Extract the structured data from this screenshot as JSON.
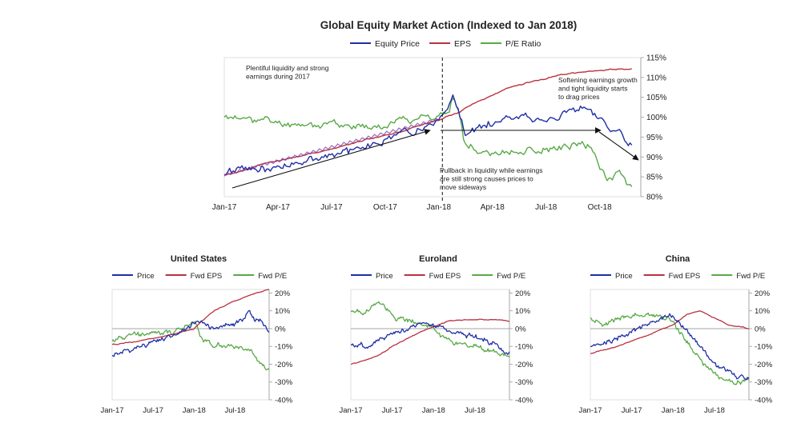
{
  "colors": {
    "price": "#1f2fa6",
    "eps": "#b83240",
    "pe": "#59a948",
    "overlap": "#7a3aa0",
    "axis": "#999999",
    "text": "#222222",
    "arrow": "#111111"
  },
  "chart_data": [
    {
      "type": "line",
      "title": "Global Equity Market Action (Indexed to Jan 2018)",
      "x_ticks": [
        "Jan-17",
        "Apr-17",
        "Jul-17",
        "Oct-17",
        "Jan-18",
        "Apr-18",
        "Jul-18",
        "Oct-18"
      ],
      "x_domain": [
        0,
        23.3
      ],
      "y_ticks": [
        "80%",
        "85%",
        "90%",
        "95%",
        "100%",
        "105%",
        "110%",
        "115%"
      ],
      "ylim": [
        80,
        115
      ],
      "y_axis_side": "right",
      "legend_position": "top-center",
      "series": [
        {
          "name": "Equity Price",
          "key": "price",
          "x": [
            0,
            1,
            2,
            3,
            4,
            5,
            6,
            7,
            8,
            9,
            10,
            11,
            12,
            12.4,
            12.8,
            13,
            13.5,
            14,
            15,
            16,
            17,
            18,
            19,
            20,
            20.5,
            21,
            21.5,
            22,
            22.5,
            22.8
          ],
          "y": [
            85.5,
            86.5,
            87.5,
            88,
            88.5,
            89.5,
            90.5,
            91,
            92.5,
            94.5,
            96.5,
            97.5,
            99.5,
            101,
            104.5,
            102,
            95.5,
            97,
            98.5,
            99.5,
            100,
            100,
            101,
            102.5,
            103,
            100,
            96,
            97.5,
            94,
            93
          ]
        },
        {
          "name": "EPS",
          "key": "eps",
          "x": [
            0,
            1,
            2,
            3,
            4,
            5,
            6,
            7,
            8,
            9,
            10,
            11,
            12,
            13,
            14,
            15,
            16,
            17,
            18,
            19,
            20,
            21,
            22,
            22.8
          ],
          "y": [
            85.5,
            86.5,
            88,
            89,
            90,
            91,
            92,
            93.2,
            94.5,
            95.5,
            96.5,
            98,
            99.3,
            101,
            103.5,
            105.5,
            107.5,
            108.8,
            109.8,
            110.8,
            111.4,
            111.8,
            112.1,
            112.2
          ]
        },
        {
          "name": "P/E Ratio",
          "key": "pe",
          "x": [
            0,
            1,
            2,
            3,
            4,
            5,
            6,
            7,
            8,
            9,
            10,
            11,
            12,
            12.5,
            12.8,
            13.2,
            13.5,
            14,
            15,
            16,
            17,
            18,
            19,
            20,
            20.5,
            21,
            21.5,
            22,
            22.5,
            22.8
          ],
          "y": [
            100,
            99.5,
            99.5,
            98.5,
            98.5,
            98,
            98.5,
            97.5,
            97.5,
            98.5,
            99.5,
            100,
            100.5,
            101,
            104.5,
            100,
            93,
            92.5,
            90.5,
            91.5,
            91.5,
            92,
            92,
            92.5,
            93,
            87.5,
            84.5,
            86.5,
            83.5,
            82.5
          ]
        }
      ],
      "annotations": [
        {
          "lines": [
            "Plentiful liquidity and strong",
            "earnings during 2017"
          ]
        },
        {
          "lines": [
            "Softening earnings growth",
            "and tight liquidity starts",
            "to drag prices"
          ]
        },
        {
          "lines": [
            "Pullback in liquidity while earnings",
            "are still strong causes prices to",
            "move sideways"
          ]
        }
      ]
    },
    {
      "type": "line",
      "title": "United States",
      "x_ticks": [
        "Jan-17",
        "Jul-17",
        "Jan-18",
        "Jul-18"
      ],
      "x_domain": [
        0,
        23
      ],
      "y_ticks": [
        "20%",
        "10%",
        "0%",
        "-10%",
        "-20%",
        "-30%",
        "-40%"
      ],
      "ylim": [
        -40,
        22
      ],
      "y_axis_side": "right",
      "legend_position": "top",
      "series": [
        {
          "name": "Price",
          "key": "price",
          "x": [
            0,
            3,
            6,
            9,
            11,
            12,
            13,
            15,
            17,
            19,
            20,
            21,
            22,
            23
          ],
          "y": [
            -15,
            -12,
            -8,
            -4,
            0,
            3,
            4,
            0,
            2,
            5,
            10,
            5,
            4,
            -2
          ]
        },
        {
          "name": "Fwd EPS",
          "key": "eps",
          "x": [
            0,
            3,
            6,
            9,
            11,
            12,
            13,
            15,
            17,
            19,
            21,
            23
          ],
          "y": [
            -9,
            -7.5,
            -5.5,
            -3,
            -1,
            0,
            4,
            10,
            14,
            17,
            20,
            22
          ]
        },
        {
          "name": "Fwd P/E",
          "key": "pe",
          "x": [
            0,
            3,
            6,
            9,
            11,
            12,
            13,
            15,
            17,
            19,
            20,
            21,
            22,
            23
          ],
          "y": [
            -7,
            -4,
            -3,
            -2,
            2,
            5,
            -4,
            -10,
            -10,
            -11,
            -12,
            -16,
            -20,
            -23
          ]
        }
      ]
    },
    {
      "type": "line",
      "title": "Euroland",
      "x_ticks": [
        "Jan-17",
        "Jul-17",
        "Jan-18",
        "Jul-18"
      ],
      "x_domain": [
        0,
        23
      ],
      "y_ticks": [
        "20%",
        "10%",
        "0%",
        "-10%",
        "-20%",
        "-30%",
        "-40%"
      ],
      "ylim": [
        -40,
        22
      ],
      "y_axis_side": "right",
      "legend_position": "top",
      "series": [
        {
          "name": "Price",
          "key": "price",
          "x": [
            0,
            2,
            4,
            6,
            8,
            10,
            12,
            13,
            15,
            17,
            19,
            20,
            21,
            22,
            23
          ],
          "y": [
            -9,
            -10,
            -6,
            -3,
            0,
            2,
            2,
            0,
            -2,
            -3,
            -5,
            -7,
            -9,
            -12,
            -13
          ]
        },
        {
          "name": "Fwd EPS",
          "key": "eps",
          "x": [
            0,
            2,
            4,
            6,
            8,
            10,
            12,
            14,
            16,
            18,
            20,
            22,
            23
          ],
          "y": [
            -20,
            -18,
            -15,
            -10,
            -6,
            -2,
            1,
            4,
            5,
            5,
            5,
            5,
            4
          ]
        },
        {
          "name": "Fwd P/E",
          "key": "pe",
          "x": [
            0,
            2,
            4,
            5,
            6,
            8,
            10,
            12,
            13,
            15,
            17,
            19,
            21,
            22,
            23
          ],
          "y": [
            10,
            9,
            16,
            12,
            7,
            4,
            2,
            0,
            -4,
            -8,
            -9,
            -11,
            -13,
            -15,
            -16
          ]
        }
      ]
    },
    {
      "type": "line",
      "title": "China",
      "x_ticks": [
        "Jan-17",
        "Jul-17",
        "Jan-18",
        "Jul-18"
      ],
      "x_domain": [
        0,
        23
      ],
      "y_ticks": [
        "20%",
        "10%",
        "0%",
        "-10%",
        "-20%",
        "-30%",
        "-40%"
      ],
      "ylim": [
        -40,
        22
      ],
      "y_axis_side": "right",
      "legend_position": "top",
      "series": [
        {
          "name": "Price",
          "key": "price",
          "x": [
            0,
            2,
            4,
            6,
            8,
            10,
            12,
            13,
            15,
            16,
            17,
            18,
            19,
            20,
            21,
            22,
            23
          ],
          "y": [
            -10,
            -8,
            -5,
            -2,
            2,
            5,
            7,
            2,
            -5,
            -10,
            -15,
            -20,
            -22,
            -25,
            -27,
            -27,
            -28
          ]
        },
        {
          "name": "Fwd EPS",
          "key": "eps",
          "x": [
            0,
            2,
            4,
            6,
            8,
            10,
            12,
            13,
            14,
            16,
            18,
            20,
            22,
            23
          ],
          "y": [
            -14,
            -12,
            -10,
            -7,
            -4,
            -1,
            2,
            5,
            8,
            10,
            6,
            2,
            1,
            0
          ]
        },
        {
          "name": "Fwd P/E",
          "key": "pe",
          "x": [
            0,
            2,
            4,
            6,
            8,
            10,
            12,
            13,
            15,
            16,
            17,
            18,
            19,
            20,
            21,
            22,
            23
          ],
          "y": [
            6,
            2,
            6,
            7,
            7,
            7,
            5,
            -2,
            -12,
            -18,
            -22,
            -25,
            -28,
            -30,
            -30,
            -30,
            -29
          ]
        }
      ]
    }
  ]
}
